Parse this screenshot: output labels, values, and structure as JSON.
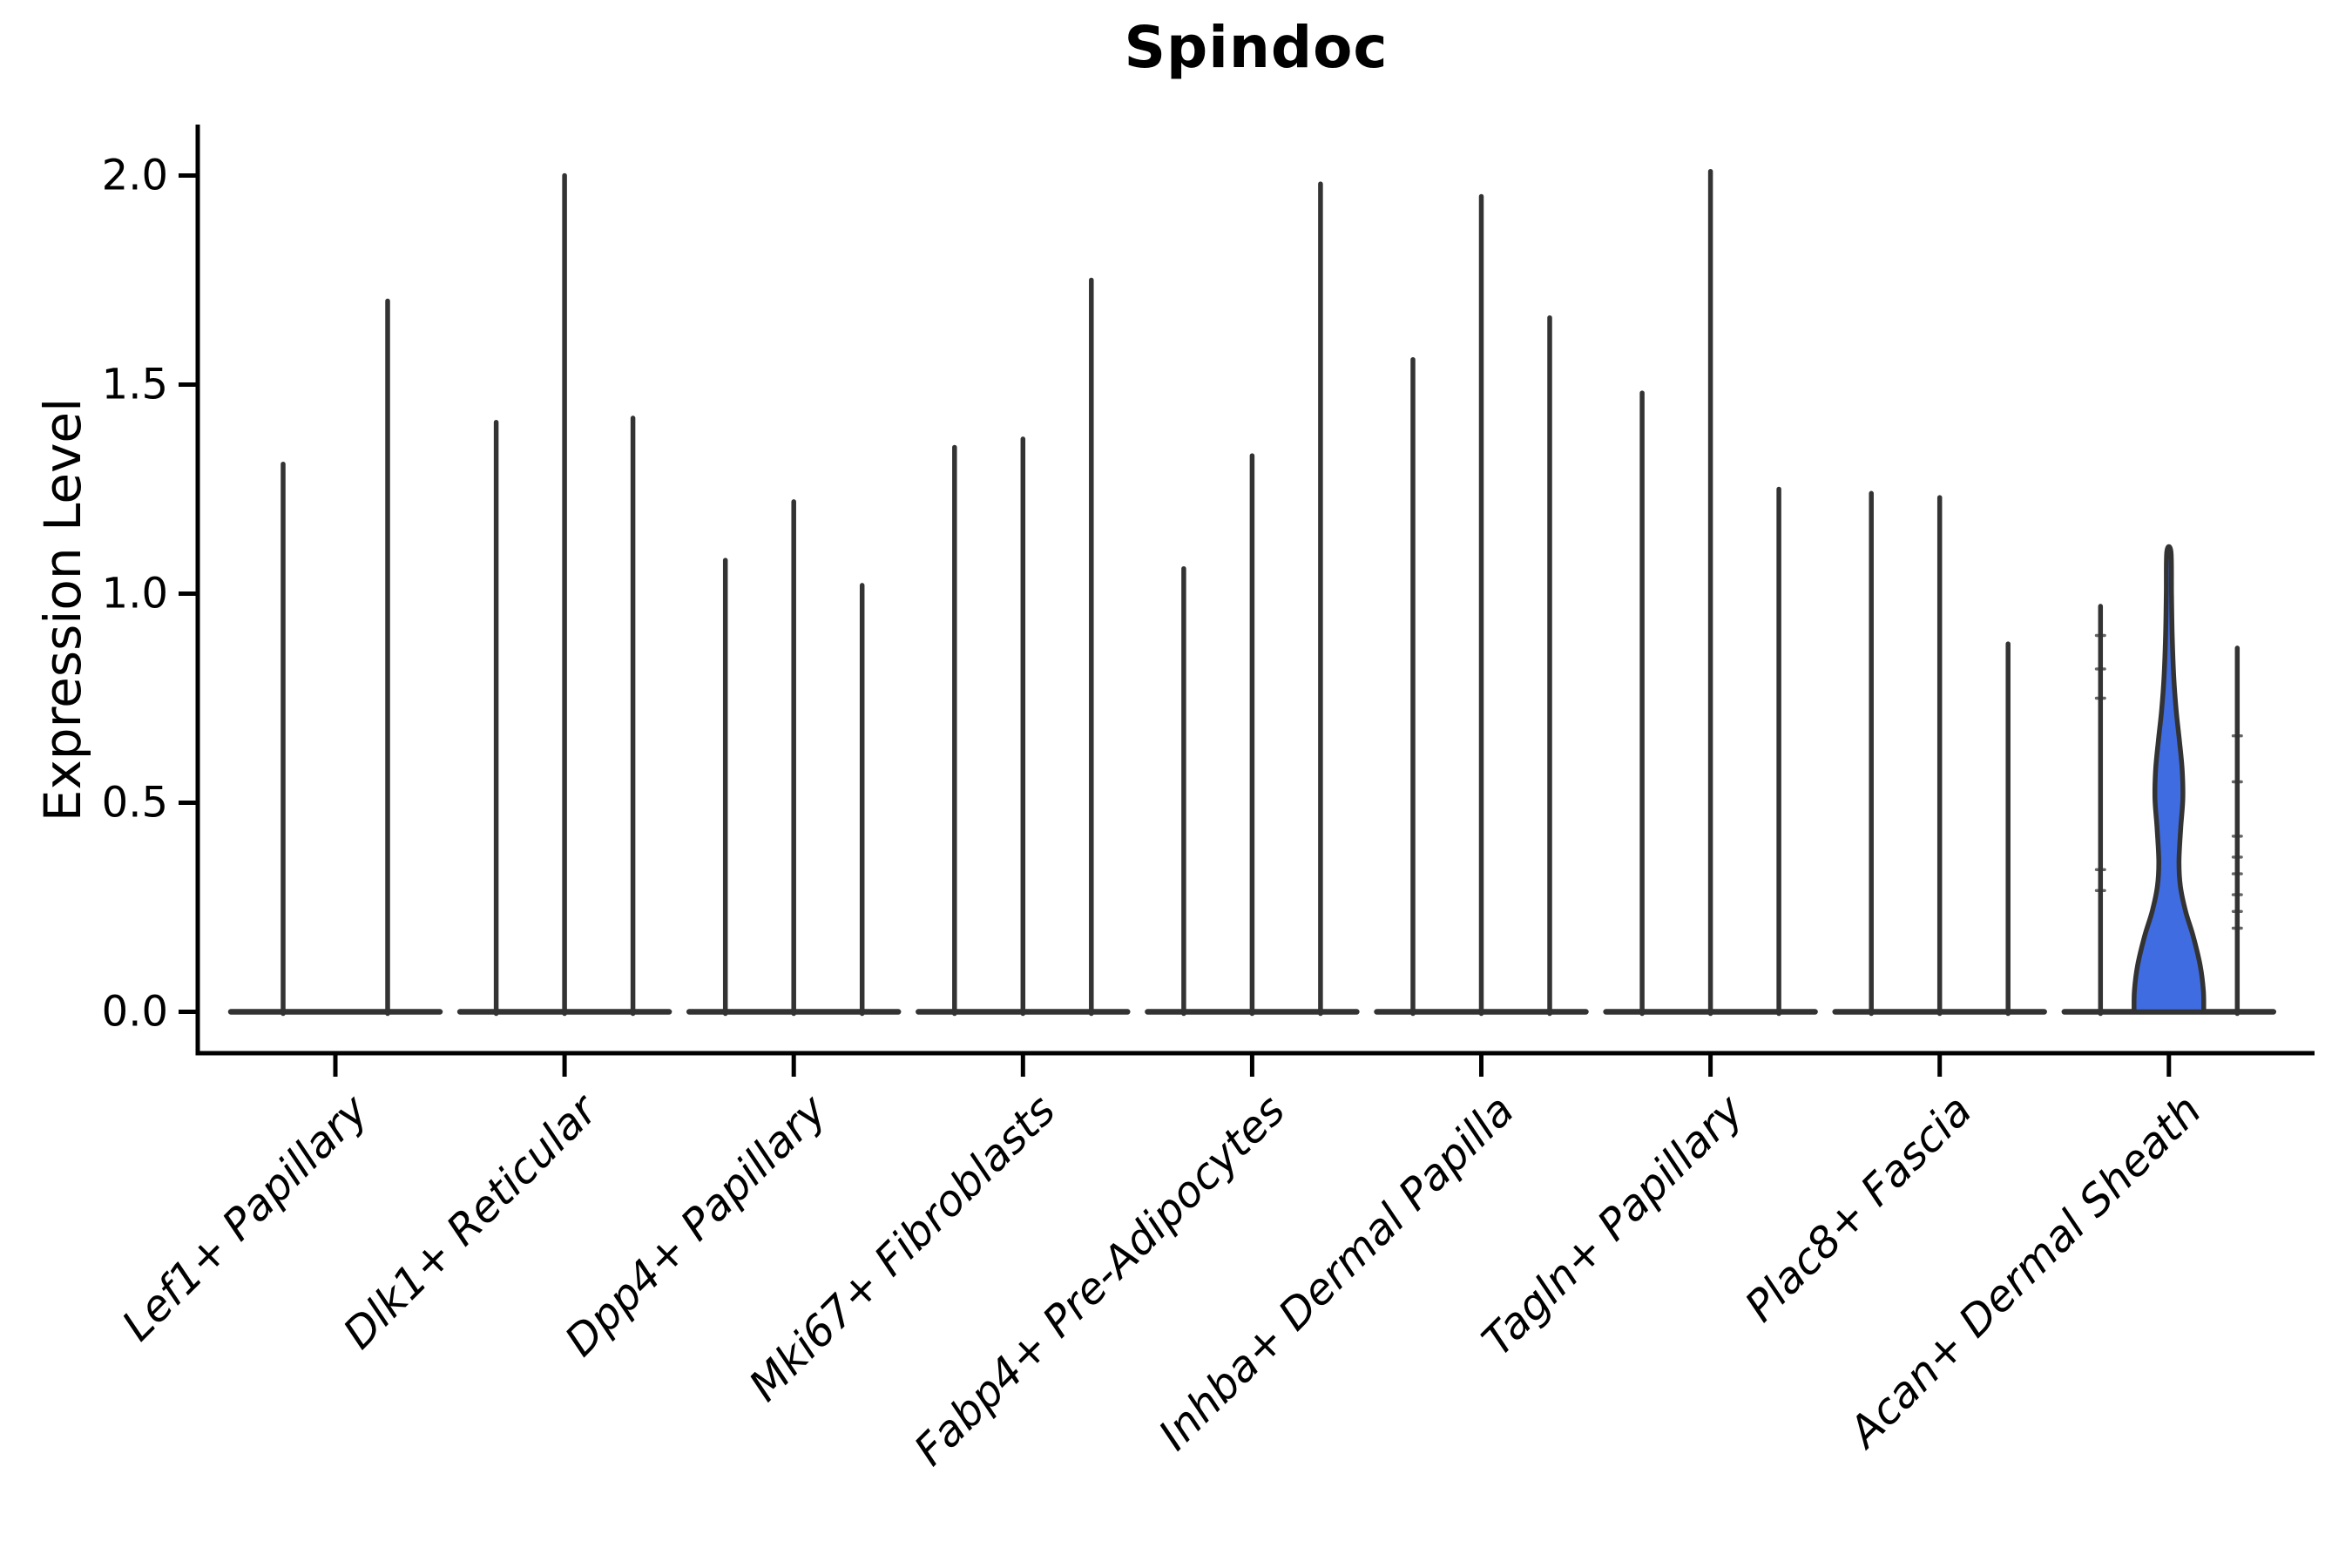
{
  "figure": {
    "background": "#ffffff"
  },
  "chart_data": {
    "type": "violin",
    "title": "Spindoc",
    "ylabel": "Expression Level",
    "xlabel": "",
    "ylim": [
      0.0,
      2.12
    ],
    "yticks": [
      0.0,
      0.5,
      1.0,
      1.5,
      2.0
    ],
    "ytick_labels": [
      "0.0",
      "0.5",
      "1.0",
      "1.5",
      "2.0"
    ],
    "grid": false,
    "legend_position": "none",
    "categories": [
      "Lef1+ Papillary",
      "Dlk1+ Reticular",
      "Dpp4+ Papillary",
      "Mki67+ Fibroblasts",
      "Fabp4+ Pre-Adipocytes",
      "Inhba+ Dermal Papilla",
      "Tagln+ Papillary",
      "Plac8+ Fascia",
      "Acan+ Dermal Sheath"
    ],
    "groups": [
      {
        "category": "Lef1+ Papillary",
        "violin_maxima": [
          1.31,
          1.7
        ],
        "highlight_index": -1
      },
      {
        "category": "Dlk1+ Reticular",
        "violin_maxima": [
          1.41,
          2.0,
          1.42
        ],
        "highlight_index": -1
      },
      {
        "category": "Dpp4+ Papillary",
        "violin_maxima": [
          1.08,
          1.22,
          1.02
        ],
        "highlight_index": -1
      },
      {
        "category": "Mki67+ Fibroblasts",
        "violin_maxima": [
          1.35,
          1.37,
          1.75
        ],
        "highlight_index": -1
      },
      {
        "category": "Fabp4+ Pre-Adipocytes",
        "violin_maxima": [
          1.06,
          1.33,
          1.98
        ],
        "highlight_index": -1
      },
      {
        "category": "Inhba+ Dermal Papilla",
        "violin_maxima": [
          1.56,
          1.95,
          1.66
        ],
        "highlight_index": -1
      },
      {
        "category": "Tagln+ Papillary",
        "violin_maxima": [
          1.48,
          2.01,
          1.25
        ],
        "highlight_index": -1
      },
      {
        "category": "Plac8+ Fascia",
        "violin_maxima": [
          1.24,
          1.23,
          0.88
        ],
        "highlight_index": -1
      },
      {
        "category": "Acan+ Dermal Sheath",
        "violin_maxima": [
          0.97,
          1.1,
          0.87
        ],
        "highlight_index": 1,
        "highlight_profile": [
          [
            0.0,
            1.0
          ],
          [
            0.05,
            0.99
          ],
          [
            0.11,
            0.9
          ],
          [
            0.18,
            0.7
          ],
          [
            0.24,
            0.48
          ],
          [
            0.3,
            0.33
          ],
          [
            0.36,
            0.29
          ],
          [
            0.44,
            0.34
          ],
          [
            0.51,
            0.4
          ],
          [
            0.58,
            0.38
          ],
          [
            0.65,
            0.3
          ],
          [
            0.72,
            0.21
          ],
          [
            0.8,
            0.14
          ],
          [
            0.9,
            0.095
          ],
          [
            1.0,
            0.075
          ],
          [
            1.1,
            0.06
          ]
        ],
        "jitter_values": {
          "0": [
            0.29,
            0.34,
            0.75,
            0.82,
            0.9
          ],
          "2": [
            0.2,
            0.24,
            0.28,
            0.33,
            0.37,
            0.42,
            0.55,
            0.66
          ]
        }
      }
    ],
    "colors": {
      "violin_line": "#333333",
      "highlight_fill": "#3f6ce1",
      "axis": "#000000",
      "text": "#000000"
    }
  }
}
